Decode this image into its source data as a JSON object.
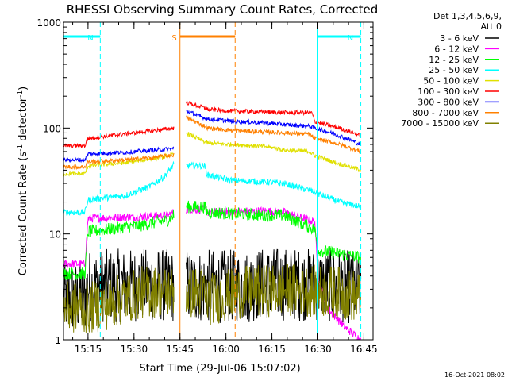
{
  "chart_data": {
    "type": "line",
    "title": "RHESSI Observing Summary Count Rates, Corrected",
    "xlabel": "Start Time (29-Jul-06 15:07:02)",
    "ylabel_main": "Corrected Count Rate (s",
    "ylabel_sup1": "-1",
    "ylabel_mid": " detector",
    "ylabel_sup2": "-1",
    "ylabel_end": ")",
    "ylim": [
      1,
      1000
    ],
    "yscale": "log",
    "xlim_minutes": [
      0,
      101
    ],
    "x_ticks": [
      {
        "m": 8,
        "label": "15:15"
      },
      {
        "m": 23,
        "label": "15:30"
      },
      {
        "m": 38,
        "label": "15:45"
      },
      {
        "m": 53,
        "label": "16:00"
      },
      {
        "m": 68,
        "label": "16:15"
      },
      {
        "m": 83,
        "label": "16:30"
      },
      {
        "m": 98,
        "label": "16:45"
      }
    ],
    "y_ticks": [
      {
        "v": 1,
        "label": "1"
      },
      {
        "v": 10,
        "label": "10"
      },
      {
        "v": 100,
        "label": "100"
      },
      {
        "v": 1000,
        "label": "1000"
      }
    ],
    "legend_header_1": "Det 1,3,4,5,6,9,",
    "legend_header_2": "Att 0",
    "series": [
      {
        "name": "3 - 6 keV",
        "color": "#000000",
        "before": [
          [
            0,
            2.5
          ],
          [
            7,
            2.5
          ],
          [
            8,
            3.2
          ],
          [
            30,
            3.3
          ],
          [
            36,
            3.2
          ]
        ],
        "after": [
          [
            40,
            3.2
          ],
          [
            46,
            3.2
          ],
          [
            47,
            3.2
          ],
          [
            60,
            3.2
          ],
          [
            66,
            3.4
          ],
          [
            84,
            3.3
          ],
          [
            92,
            3.2
          ],
          [
            97,
            3.0
          ]
        ],
        "noise": 0.35
      },
      {
        "name": "6 - 12 keV",
        "color": "#ff00ff",
        "before": [
          [
            0,
            5.2
          ],
          [
            7,
            5.2
          ],
          [
            8,
            14
          ],
          [
            25,
            14.5
          ],
          [
            34,
            15
          ],
          [
            36,
            16
          ]
        ],
        "after": [
          [
            40,
            17
          ],
          [
            46,
            17
          ],
          [
            47,
            16
          ],
          [
            66,
            16.5
          ],
          [
            72,
            16
          ],
          [
            82,
            13
          ],
          [
            83,
            4
          ],
          [
            86,
            2
          ],
          [
            92,
            1.3
          ],
          [
            97,
            1.0
          ]
        ],
        "noise": 0.04
      },
      {
        "name": "12 - 25 keV",
        "color": "#00ff00",
        "before": [
          [
            0,
            4.2
          ],
          [
            7,
            4.2
          ],
          [
            8,
            10.5
          ],
          [
            25,
            12
          ],
          [
            34,
            13.5
          ],
          [
            36,
            15
          ]
        ],
        "after": [
          [
            40,
            18
          ],
          [
            46,
            18
          ],
          [
            47,
            16
          ],
          [
            66,
            15
          ],
          [
            72,
            15
          ],
          [
            82,
            11
          ],
          [
            83,
            7
          ],
          [
            90,
            6.5
          ],
          [
            97,
            6.0
          ]
        ],
        "noise": 0.06
      },
      {
        "name": "25 - 50 keV",
        "color": "#00ffff",
        "before": [
          [
            0,
            16
          ],
          [
            7,
            16
          ],
          [
            8,
            21
          ],
          [
            20,
            23
          ],
          [
            28,
            28
          ],
          [
            33,
            35
          ],
          [
            36,
            45
          ]
        ],
        "after": [
          [
            40,
            44
          ],
          [
            46,
            44
          ],
          [
            47,
            36
          ],
          [
            55,
            32
          ],
          [
            66,
            31
          ],
          [
            72,
            30
          ],
          [
            82,
            25
          ],
          [
            83,
            24
          ],
          [
            90,
            20
          ],
          [
            97,
            18
          ]
        ],
        "noise": 0.03
      },
      {
        "name": "50 - 100 keV",
        "color": "#e0e000",
        "before": [
          [
            0,
            37
          ],
          [
            7,
            37
          ],
          [
            8,
            44
          ],
          [
            20,
            47
          ],
          [
            30,
            52
          ],
          [
            36,
            56
          ]
        ],
        "after": [
          [
            40,
            90
          ],
          [
            46,
            74
          ],
          [
            47,
            72
          ],
          [
            55,
            70
          ],
          [
            66,
            67
          ],
          [
            72,
            62
          ],
          [
            80,
            60
          ],
          [
            82,
            55
          ],
          [
            90,
            46
          ],
          [
            97,
            40
          ]
        ],
        "noise": 0.02
      },
      {
        "name": "100 - 300 keV",
        "color": "#ff0000",
        "before": [
          [
            0,
            68
          ],
          [
            7,
            68
          ],
          [
            8,
            80
          ],
          [
            20,
            88
          ],
          [
            30,
            95
          ],
          [
            36,
            100
          ]
        ],
        "after": [
          [
            40,
            175
          ],
          [
            46,
            155
          ],
          [
            47,
            150
          ],
          [
            55,
            145
          ],
          [
            66,
            142
          ],
          [
            72,
            140
          ],
          [
            81,
            140
          ],
          [
            82,
            115
          ],
          [
            90,
            100
          ],
          [
            97,
            85
          ]
        ],
        "noise": 0.02
      },
      {
        "name": "300 - 800 keV",
        "color": "#0000ff",
        "before": [
          [
            0,
            50
          ],
          [
            7,
            50
          ],
          [
            8,
            57
          ],
          [
            20,
            59
          ],
          [
            30,
            62
          ],
          [
            36,
            64
          ]
        ],
        "after": [
          [
            40,
            145
          ],
          [
            46,
            125
          ],
          [
            47,
            122
          ],
          [
            55,
            116
          ],
          [
            66,
            112
          ],
          [
            72,
            108
          ],
          [
            80,
            104
          ],
          [
            82,
            100
          ],
          [
            90,
            85
          ],
          [
            97,
            70
          ]
        ],
        "noise": 0.02
      },
      {
        "name": "800 - 7000 keV",
        "color": "#ff8000",
        "before": [
          [
            0,
            43
          ],
          [
            7,
            43
          ],
          [
            8,
            48
          ],
          [
            20,
            50
          ],
          [
            30,
            53
          ],
          [
            36,
            56
          ]
        ],
        "after": [
          [
            40,
            125
          ],
          [
            46,
            105
          ],
          [
            47,
            100
          ],
          [
            55,
            95
          ],
          [
            66,
            92
          ],
          [
            72,
            90
          ],
          [
            80,
            88
          ],
          [
            82,
            80
          ],
          [
            90,
            70
          ],
          [
            97,
            60
          ]
        ],
        "noise": 0.02
      },
      {
        "name": "7000 - 15000 keV",
        "color": "#808000",
        "before": [
          [
            0,
            2.0
          ],
          [
            7,
            2.0
          ],
          [
            8,
            2.0
          ],
          [
            15,
            2.2
          ],
          [
            25,
            2.8
          ],
          [
            36,
            2.9
          ]
        ],
        "after": [
          [
            40,
            2.8
          ],
          [
            46,
            2.8
          ],
          [
            47,
            2.4
          ],
          [
            58,
            2.8
          ],
          [
            66,
            2.9
          ],
          [
            72,
            3.0
          ],
          [
            82,
            2.9
          ],
          [
            90,
            2.8
          ],
          [
            97,
            2.5
          ]
        ],
        "noise": 0.25
      }
    ],
    "mode_markers": [
      {
        "label": "N",
        "color": "#00ffff",
        "start_m": 0,
        "end_m": 12
      },
      {
        "label": "N",
        "color": "#00ffff",
        "start_m": 83,
        "end_m": 97
      },
      {
        "label": "S",
        "color": "#ff8000",
        "start_m": 38,
        "end_m": 56
      }
    ],
    "timestamp": "16-Oct-2021 08:02"
  }
}
